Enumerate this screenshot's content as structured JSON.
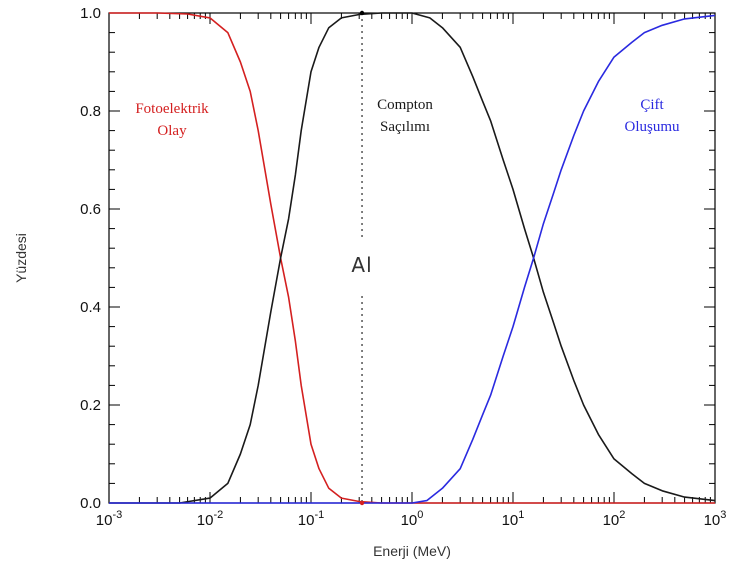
{
  "chart_data": {
    "type": "line",
    "title": "",
    "xlabel": "Enerji (MeV)",
    "ylabel": "Yüzdesi",
    "xscale": "log",
    "xlim": [
      0.001,
      1000
    ],
    "ylim": [
      0.0,
      1.0
    ],
    "x_tick_labels": [
      {
        "base": "10",
        "exp": "-3"
      },
      {
        "base": "10",
        "exp": "-2"
      },
      {
        "base": "10",
        "exp": "-1"
      },
      {
        "base": "10",
        "exp": "0"
      },
      {
        "base": "10",
        "exp": "1"
      },
      {
        "base": "10",
        "exp": "2"
      },
      {
        "base": "10",
        "exp": "3"
      }
    ],
    "y_tick_labels": [
      "0.0",
      "0.2",
      "0.4",
      "0.6",
      "0.8",
      "1.0"
    ],
    "y_ticks": [
      0.0,
      0.2,
      0.4,
      0.6,
      0.8,
      1.0
    ],
    "series": [
      {
        "name": "Fotoelektrik Olay",
        "color": "#d42020",
        "x": [
          0.001,
          0.003,
          0.006,
          0.01,
          0.015,
          0.02,
          0.025,
          0.03,
          0.04,
          0.05,
          0.06,
          0.07,
          0.08,
          0.1,
          0.12,
          0.15,
          0.2,
          0.3,
          0.5,
          1,
          10,
          1000
        ],
        "y": [
          1.0,
          1.0,
          0.998,
          0.99,
          0.96,
          0.9,
          0.84,
          0.76,
          0.61,
          0.5,
          0.42,
          0.33,
          0.24,
          0.12,
          0.07,
          0.03,
          0.01,
          0.003,
          0.0,
          0.0,
          0.0,
          0.0
        ]
      },
      {
        "name": "Compton Saçılımı",
        "color": "#1a1a1a",
        "x": [
          0.001,
          0.005,
          0.01,
          0.015,
          0.02,
          0.025,
          0.03,
          0.04,
          0.05,
          0.06,
          0.07,
          0.08,
          0.1,
          0.12,
          0.15,
          0.2,
          0.3,
          0.5,
          1,
          1.5,
          2,
          3,
          4,
          5,
          6,
          8,
          10,
          13,
          16,
          20,
          25,
          30,
          40,
          50,
          70,
          100,
          150,
          200,
          300,
          500,
          1000
        ],
        "y": [
          0.0,
          0.0,
          0.01,
          0.04,
          0.1,
          0.16,
          0.24,
          0.39,
          0.5,
          0.58,
          0.67,
          0.76,
          0.88,
          0.93,
          0.97,
          0.99,
          0.997,
          1.0,
          1.0,
          0.99,
          0.97,
          0.93,
          0.87,
          0.82,
          0.78,
          0.7,
          0.64,
          0.56,
          0.5,
          0.43,
          0.37,
          0.32,
          0.25,
          0.2,
          0.14,
          0.09,
          0.06,
          0.04,
          0.025,
          0.012,
          0.005
        ]
      },
      {
        "name": "Çift Oluşumu",
        "color": "#2a2ae0",
        "x": [
          0.001,
          0.1,
          1,
          1.4,
          2,
          3,
          4,
          5,
          6,
          8,
          10,
          13,
          16,
          20,
          25,
          30,
          40,
          50,
          70,
          100,
          150,
          200,
          300,
          500,
          1000
        ],
        "y": [
          0.0,
          0.0,
          0.0,
          0.005,
          0.03,
          0.07,
          0.13,
          0.18,
          0.22,
          0.3,
          0.36,
          0.44,
          0.5,
          0.57,
          0.63,
          0.68,
          0.75,
          0.8,
          0.86,
          0.91,
          0.94,
          0.96,
          0.975,
          0.988,
          0.995
        ]
      }
    ],
    "annotations": [
      {
        "lines": [
          "Fotoelektrik",
          "Olay"
        ],
        "color": "#d42020"
      },
      {
        "lines": [
          "Compton",
          "Saçılımı"
        ],
        "color": "#1a1a1a"
      },
      {
        "lines": [
          "Çift",
          "Oluşumu"
        ],
        "color": "#2a2ae0"
      }
    ],
    "marker": {
      "label": "Al",
      "x": 0.32
    },
    "grid": false,
    "legend": "none"
  }
}
